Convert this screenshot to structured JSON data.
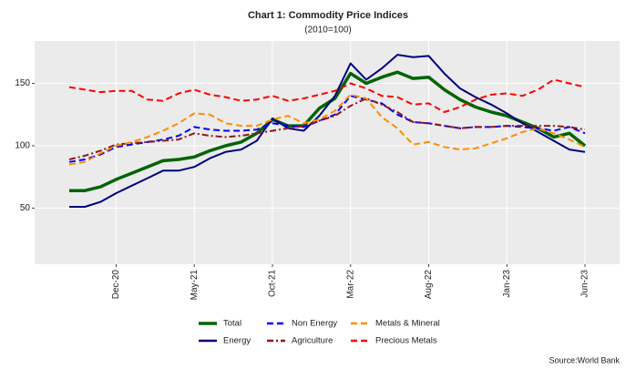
{
  "chart_data": {
    "type": "line",
    "title": "Chart 1: Commodity Price Indices",
    "subtitle": "(2010=100)",
    "source": "Source:World Bank",
    "categories": [
      null,
      null,
      null,
      "Dec-20",
      null,
      null,
      null,
      null,
      "May-21",
      null,
      null,
      null,
      null,
      "Oct-21",
      null,
      null,
      null,
      null,
      "Mar-22",
      null,
      null,
      null,
      null,
      "Aug-22",
      null,
      null,
      null,
      null,
      "Jan-23",
      null,
      null,
      null,
      null,
      "Jun-23"
    ],
    "ylim": [
      5,
      184
    ],
    "yticks": [
      50,
      100,
      150
    ],
    "grid": true,
    "legend": "bottom",
    "series": [
      {
        "name": "Total",
        "color": "#006400",
        "style": "thick",
        "values": [
          64,
          64,
          67,
          73,
          78,
          83,
          88,
          89,
          91,
          96,
          100,
          103,
          110,
          121,
          116,
          116,
          130,
          138,
          158,
          150,
          155,
          159,
          154,
          155,
          145,
          137,
          131,
          127,
          124,
          119,
          114,
          107,
          110,
          100
        ]
      },
      {
        "name": "Energy",
        "color": "#000080",
        "style": "solid",
        "values": [
          51,
          51,
          55,
          62,
          68,
          74,
          80,
          80,
          83,
          90,
          95,
          97,
          104,
          122,
          114,
          112,
          124,
          140,
          166,
          153,
          162,
          173,
          171,
          172,
          158,
          146,
          139,
          133,
          126,
          118,
          111,
          104,
          97,
          95
        ]
      },
      {
        "name": "Non Energy",
        "color": "#0000ff",
        "style": "dashed",
        "values": [
          87,
          89,
          93,
          99,
          101,
          103,
          105,
          108,
          115,
          113,
          112,
          112,
          113,
          118,
          116,
          115,
          120,
          125,
          140,
          137,
          134,
          125,
          119,
          118,
          116,
          114,
          115,
          115,
          116,
          115,
          114,
          112,
          115,
          110
        ]
      },
      {
        "name": "Agriculture",
        "color": "#8b1a1a",
        "style": "dotdash",
        "values": [
          89,
          92,
          96,
          101,
          102,
          103,
          104,
          105,
          110,
          108,
          107,
          108,
          110,
          112,
          114,
          116,
          120,
          124,
          132,
          138,
          133,
          127,
          119,
          118,
          116,
          114,
          115,
          115,
          116,
          116,
          116,
          116,
          115,
          113
        ]
      },
      {
        "name": "Metals & Mineral",
        "color": "#ff8c00",
        "style": "dashed",
        "values": [
          85,
          87,
          94,
          100,
          103,
          107,
          112,
          118,
          126,
          125,
          118,
          116,
          116,
          121,
          124,
          118,
          121,
          128,
          141,
          138,
          123,
          114,
          101,
          103,
          99,
          97,
          98,
          102,
          106,
          111,
          114,
          110,
          105,
          99
        ]
      },
      {
        "name": "Precious Metals",
        "color": "#ff0000",
        "style": "dashed",
        "values": [
          147,
          145,
          143,
          144,
          144,
          137,
          136,
          142,
          145,
          141,
          139,
          136,
          137,
          140,
          136,
          138,
          141,
          144,
          150,
          146,
          140,
          139,
          133,
          134,
          127,
          131,
          137,
          141,
          142,
          140,
          145,
          153,
          150,
          147
        ]
      }
    ]
  }
}
